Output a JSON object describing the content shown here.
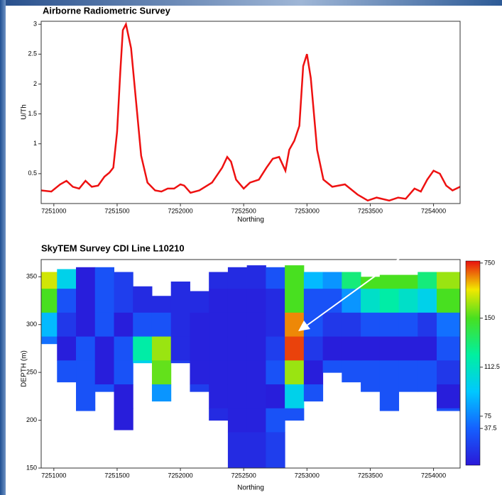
{
  "chart_data": [
    {
      "type": "line",
      "title": "Airborne Radiometric Survey",
      "ylabel": "U/Th",
      "xlabel": "Northing",
      "color": "#ee1111",
      "x": [
        7250900,
        7250980,
        7251050,
        7251100,
        7251150,
        7251200,
        7251250,
        7251300,
        7251350,
        7251400,
        7251440,
        7251470,
        7251500,
        7251525,
        7251545,
        7251570,
        7251610,
        7251650,
        7251690,
        7251740,
        7251800,
        7251850,
        7251900,
        7251950,
        7252000,
        7252030,
        7252080,
        7252150,
        7252250,
        7252330,
        7252370,
        7252400,
        7252440,
        7252500,
        7252550,
        7252620,
        7252680,
        7252730,
        7252780,
        7252830,
        7252860,
        7252900,
        7252940,
        7252970,
        7253000,
        7253030,
        7253080,
        7253130,
        7253200,
        7253300,
        7253400,
        7253480,
        7253550,
        7253650,
        7253720,
        7253780,
        7253850,
        7253900,
        7253950,
        7254000,
        7254050,
        7254100,
        7254150,
        7254210
      ],
      "values": [
        0.22,
        0.2,
        0.32,
        0.38,
        0.28,
        0.25,
        0.38,
        0.28,
        0.3,
        0.45,
        0.52,
        0.6,
        1.2,
        2.2,
        2.9,
        3.0,
        2.6,
        1.7,
        0.8,
        0.35,
        0.22,
        0.2,
        0.25,
        0.25,
        0.32,
        0.3,
        0.18,
        0.22,
        0.35,
        0.6,
        0.78,
        0.7,
        0.4,
        0.25,
        0.35,
        0.4,
        0.6,
        0.75,
        0.78,
        0.55,
        0.9,
        1.05,
        1.3,
        2.3,
        2.5,
        2.1,
        0.9,
        0.4,
        0.28,
        0.32,
        0.15,
        0.05,
        0.1,
        0.05,
        0.1,
        0.08,
        0.25,
        0.2,
        0.4,
        0.55,
        0.5,
        0.3,
        0.22,
        0.28
      ],
      "xlim": [
        7250900,
        7254210
      ],
      "xticks": [
        7251000,
        7251500,
        7252000,
        7252500,
        7253000,
        7253500,
        7254000
      ],
      "ylim": [
        0,
        3.05
      ],
      "yticks": [
        0.5,
        1,
        1.5,
        2,
        2.5,
        3
      ]
    },
    {
      "type": "heatmap",
      "title": "SkyTEM Survey CDI Line L10210",
      "ylabel": "DEPTH (m)",
      "xlabel": "Northing",
      "x": [
        7250950,
        7251100,
        7251250,
        7251400,
        7251550,
        7251700,
        7251850,
        7252000,
        7252150,
        7252300,
        7252450,
        7252600,
        7252750,
        7252900,
        7253050,
        7253200,
        7253350,
        7253500,
        7253650,
        7253800,
        7253950,
        7254100
      ],
      "top": [
        355,
        358,
        360,
        360,
        355,
        340,
        330,
        345,
        335,
        355,
        360,
        362,
        360,
        362,
        355,
        355,
        355,
        350,
        352,
        352,
        355,
        355
      ],
      "bottom": [
        280,
        240,
        210,
        230,
        190,
        260,
        220,
        260,
        230,
        200,
        150,
        150,
        150,
        200,
        220,
        250,
        240,
        230,
        210,
        230,
        230,
        210
      ],
      "depths": [
        350,
        325,
        300,
        275,
        250,
        225,
        200,
        175
      ],
      "values": [
        [
          400,
          100,
          40,
          30,
          20,
          10,
          10,
          10,
          10,
          10,
          10,
          10,
          30,
          150,
          90,
          80,
          130,
          150,
          150,
          150,
          130,
          300
        ],
        [
          150,
          60,
          40,
          30,
          20,
          10,
          10,
          10,
          10,
          5,
          5,
          5,
          10,
          150,
          60,
          60,
          80,
          110,
          120,
          110,
          100,
          150
        ],
        [
          90,
          50,
          40,
          30,
          40,
          60,
          60,
          10,
          5,
          5,
          5,
          5,
          10,
          600,
          60,
          50,
          50,
          60,
          60,
          60,
          50,
          70
        ],
        [
          70,
          40,
          30,
          40,
          60,
          120,
          300,
          10,
          5,
          5,
          5,
          5,
          20,
          700,
          50,
          40,
          40,
          40,
          40,
          40,
          40,
          60
        ],
        [
          50,
          30,
          30,
          40,
          60,
          100,
          200,
          20,
          5,
          5,
          5,
          5,
          30,
          300,
          40,
          30,
          30,
          30,
          30,
          30,
          30,
          50
        ],
        [
          40,
          30,
          30,
          30,
          40,
          60,
          80,
          40,
          20,
          5,
          5,
          5,
          40,
          100,
          30,
          30,
          30,
          30,
          30,
          30,
          30,
          40
        ],
        [
          30,
          30,
          30,
          30,
          40,
          40,
          40,
          40,
          30,
          10,
          5,
          5,
          30,
          60,
          30,
          30,
          30,
          30,
          30,
          30,
          30,
          30
        ],
        [
          30,
          30,
          30,
          30,
          30,
          30,
          30,
          30,
          30,
          20,
          10,
          10,
          20,
          30,
          30,
          30,
          30,
          30,
          30,
          30,
          30,
          30
        ]
      ],
      "xlim": [
        7250900,
        7254210
      ],
      "xticks": [
        7251000,
        7251500,
        7252000,
        7252500,
        7253000,
        7253500,
        7254000
      ],
      "ylim": [
        150,
        368
      ],
      "yticks": [
        150,
        200,
        250,
        300,
        350
      ],
      "colorbar_ticks": [
        37.5,
        75,
        112.5,
        150,
        750
      ]
    }
  ]
}
